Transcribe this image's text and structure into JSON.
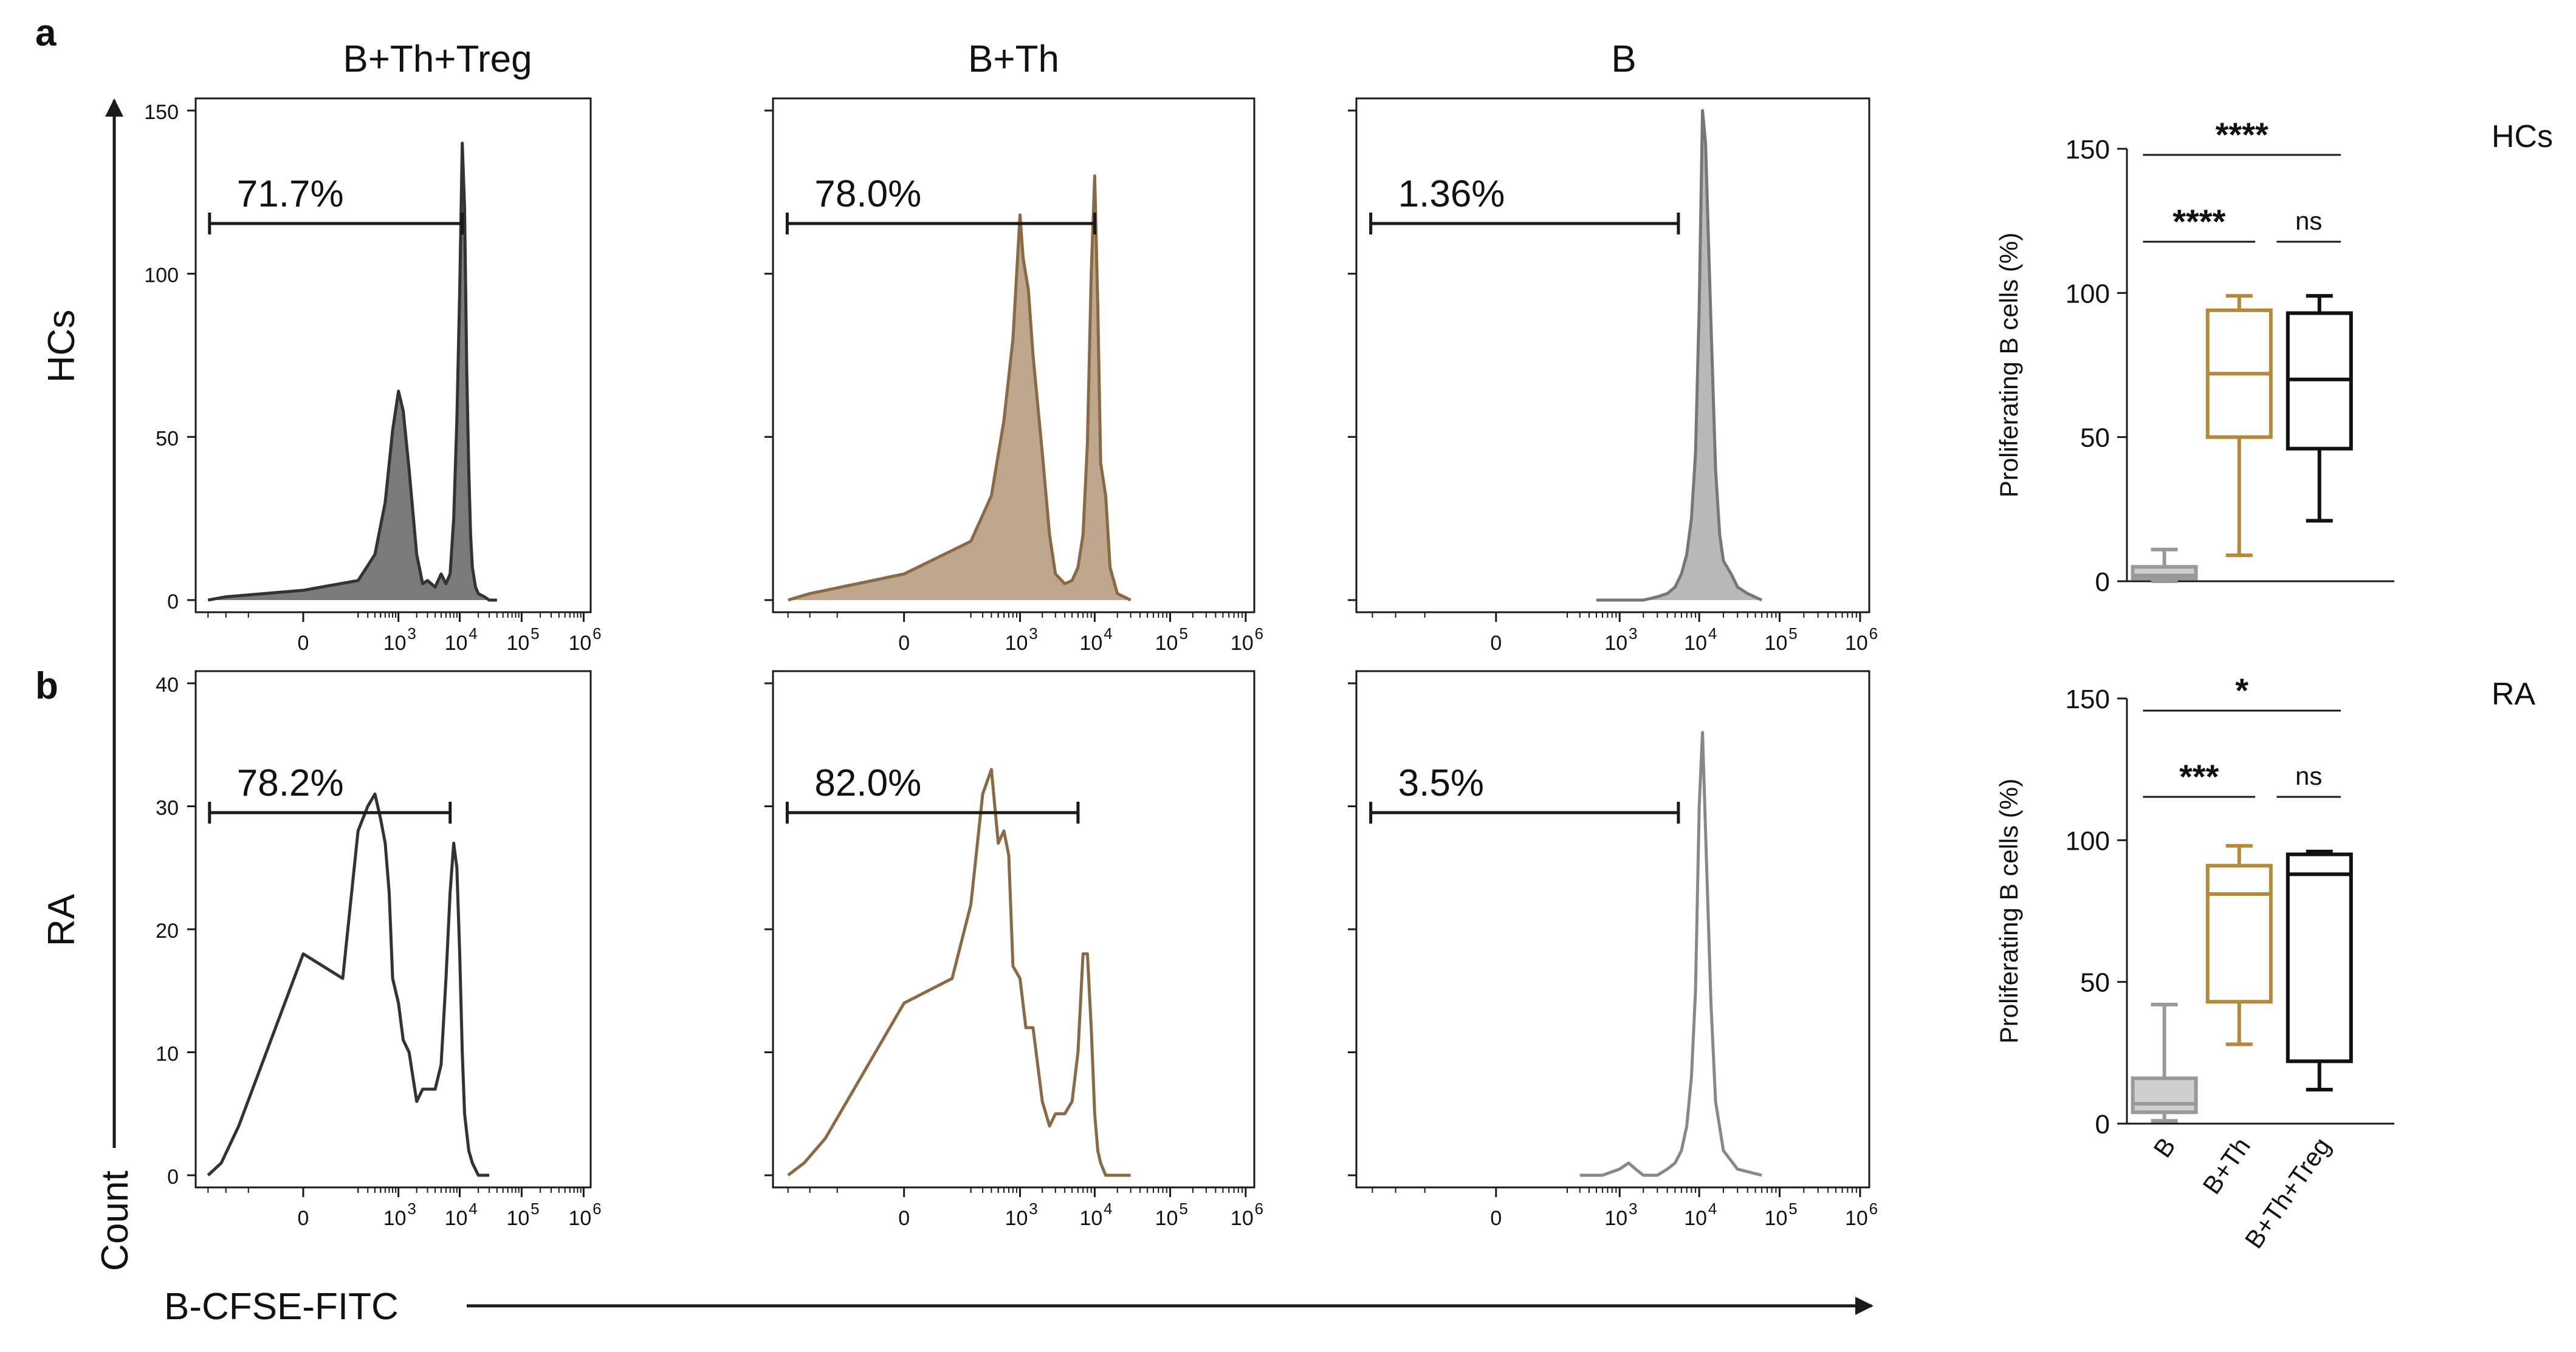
{
  "panel_labels": {
    "a": "a",
    "b": "b"
  },
  "row_labels": {
    "top": "HCs",
    "bottom": "RA"
  },
  "axis_labels": {
    "count": "Count",
    "fluorescence": "B-CFSE-FITC"
  },
  "column_titles": [
    "B+Th+Treg",
    "B+Th",
    "B"
  ],
  "colors": {
    "treg": "#444444",
    "th": "#8a6a45",
    "b": "#8c8c8c",
    "th_fill": "#bfa78d",
    "treg_fill": "#7a7a7a",
    "b_fill": "#b9b9b9",
    "box_th": "#b38a3c",
    "box_treg": "#111111",
    "box_b": "#999999"
  },
  "histogram_x_ticks": [
    "0",
    "10",
    "3",
    "10",
    "4",
    "10",
    "5",
    "10",
    "6"
  ],
  "hcs_y_ticks": [
    "0",
    "50",
    "100",
    "150"
  ],
  "ra_y_ticks": [
    "0",
    "10",
    "20",
    "30",
    "40"
  ],
  "chart_data": [
    {
      "type": "area",
      "panel": "a",
      "row": "HCs",
      "column": "B+Th+Treg",
      "xscale": "biexponential",
      "ylim": [
        0,
        150
      ],
      "gate_percent": "71.7%",
      "x": [
        -1000,
        -500,
        0,
        200,
        400,
        600,
        800,
        1000,
        1200,
        1500,
        2000,
        2500,
        3000,
        4000,
        5000,
        6000,
        7000,
        8000,
        9000,
        10000,
        11000,
        12000,
        13000,
        14000,
        15000,
        16000,
        18000,
        20000,
        25000,
        30000,
        40000
      ],
      "y": [
        0,
        1,
        3,
        6,
        14,
        30,
        52,
        64,
        58,
        40,
        14,
        5,
        6,
        4,
        8,
        5,
        8,
        25,
        55,
        95,
        140,
        120,
        70,
        40,
        20,
        10,
        4,
        2,
        1,
        0,
        0
      ]
    },
    {
      "type": "area",
      "panel": "a",
      "row": "HCs",
      "column": "B+Th",
      "xscale": "biexponential",
      "ylim": [
        0,
        150
      ],
      "gate_percent": "78.0%",
      "x": [
        -1000,
        -500,
        0,
        200,
        400,
        600,
        800,
        1000,
        1100,
        1300,
        1500,
        2000,
        2500,
        3000,
        4000,
        5000,
        6000,
        7000,
        8000,
        9000,
        10000,
        11000,
        12000,
        14000,
        16000,
        20000,
        30000
      ],
      "y": [
        0,
        2,
        8,
        18,
        32,
        55,
        80,
        118,
        105,
        95,
        75,
        45,
        20,
        8,
        5,
        6,
        10,
        20,
        48,
        100,
        130,
        90,
        42,
        32,
        10,
        2,
        0
      ]
    },
    {
      "type": "area",
      "panel": "a",
      "row": "HCs",
      "column": "B",
      "xscale": "biexponential",
      "ylim": [
        0,
        150
      ],
      "gate_percent": "1.36%",
      "x": [
        500,
        1000,
        2000,
        3000,
        4000,
        5000,
        6000,
        7000,
        8000,
        9000,
        10000,
        11000,
        12000,
        14000,
        16000,
        18000,
        20000,
        25000,
        30000,
        40000,
        60000
      ],
      "y": [
        0,
        0,
        0,
        1,
        2,
        4,
        8,
        14,
        25,
        45,
        90,
        150,
        140,
        85,
        40,
        20,
        12,
        8,
        4,
        2,
        0
      ]
    },
    {
      "type": "line",
      "panel": "b",
      "row": "RA",
      "column": "B+Th+Treg",
      "xscale": "biexponential",
      "ylim": [
        0,
        40
      ],
      "gate_percent": "78.2%",
      "x": [
        -1000,
        -600,
        -300,
        0,
        100,
        200,
        300,
        400,
        500,
        600,
        700,
        800,
        1000,
        1200,
        1500,
        2000,
        2500,
        3000,
        4000,
        5000,
        6000,
        7000,
        8000,
        9000,
        10000,
        11000,
        12000,
        14000,
        16000,
        20000,
        30000
      ],
      "y": [
        0,
        1,
        4,
        18,
        16,
        28,
        30,
        31,
        29,
        27,
        23,
        16,
        14,
        11,
        10,
        6,
        7,
        7,
        7,
        9,
        16,
        23,
        27,
        25,
        18,
        10,
        5,
        2,
        1,
        0,
        0
      ]
    },
    {
      "type": "line",
      "panel": "b",
      "row": "RA",
      "column": "B+Th",
      "xscale": "biexponential",
      "ylim": [
        0,
        40
      ],
      "gate_percent": "82.0%",
      "x": [
        -1000,
        -600,
        -300,
        0,
        100,
        200,
        300,
        400,
        500,
        600,
        700,
        800,
        1000,
        1200,
        1500,
        2000,
        2500,
        3000,
        4000,
        5000,
        6000,
        7000,
        8000,
        9000,
        10000,
        11000,
        12000,
        14000,
        16000,
        20000,
        30000
      ],
      "y": [
        0,
        1,
        3,
        14,
        16,
        22,
        31,
        33,
        27,
        28,
        26,
        17,
        16,
        12,
        12,
        6,
        4,
        5,
        5,
        6,
        10,
        18,
        18,
        12,
        5,
        2,
        1,
        0,
        0,
        0,
        0
      ]
    },
    {
      "type": "line",
      "panel": "b",
      "row": "RA",
      "column": "B",
      "xscale": "biexponential",
      "ylim": [
        0,
        40
      ],
      "gate_percent": "3.5%",
      "x": [
        300,
        600,
        1000,
        1300,
        1600,
        2000,
        3000,
        4000,
        5000,
        6000,
        7000,
        8000,
        9000,
        10000,
        11000,
        12000,
        14000,
        16000,
        20000,
        30000,
        60000
      ],
      "y": [
        0,
        0,
        0.5,
        1,
        0.5,
        0,
        0,
        0.5,
        1,
        2,
        4,
        8,
        15,
        30,
        36,
        28,
        14,
        6,
        2,
        0.5,
        0
      ]
    },
    {
      "type": "box",
      "row": "HCs",
      "ylabel": "Proliferating B cells (%)",
      "ylim": [
        0,
        150
      ],
      "y_ticks": [
        "0",
        "50",
        "100",
        "150"
      ],
      "categories": [
        "B",
        "B+Th",
        "B+Th+Treg"
      ],
      "series": [
        {
          "category": "B",
          "min": 0,
          "q1": 1,
          "median": 2,
          "q3": 5,
          "max": 11
        },
        {
          "category": "B+Th",
          "min": 9,
          "q1": 50,
          "median": 72,
          "q3": 94,
          "max": 99
        },
        {
          "category": "B+Th+Treg",
          "min": 21,
          "q1": 46,
          "median": 70,
          "q3": 93,
          "max": 99
        }
      ],
      "significance": [
        {
          "pair": [
            "B",
            "B+Th+Treg"
          ],
          "label": "****"
        },
        {
          "pair": [
            "B",
            "B+Th"
          ],
          "label": "****"
        },
        {
          "pair": [
            "B+Th",
            "B+Th+Treg"
          ],
          "label": "ns"
        }
      ]
    },
    {
      "type": "box",
      "row": "RA",
      "ylabel": "Proliferating B cells (%)",
      "ylim": [
        0,
        150
      ],
      "y_ticks": [
        "0",
        "50",
        "100",
        "150"
      ],
      "categories": [
        "B",
        "B+Th",
        "B+Th+Treg"
      ],
      "series": [
        {
          "category": "B",
          "min": 1,
          "q1": 4,
          "median": 7,
          "q3": 16,
          "max": 42
        },
        {
          "category": "B+Th",
          "min": 28,
          "q1": 43,
          "median": 81,
          "q3": 91,
          "max": 98
        },
        {
          "category": "B+Th+Treg",
          "min": 12,
          "q1": 22,
          "median": 88,
          "q3": 95,
          "max": 96
        }
      ],
      "significance": [
        {
          "pair": [
            "B",
            "B+Th+Treg"
          ],
          "label": "*"
        },
        {
          "pair": [
            "B",
            "B+Th"
          ],
          "label": "***"
        },
        {
          "pair": [
            "B+Th",
            "B+Th+Treg"
          ],
          "label": "ns"
        }
      ]
    }
  ]
}
